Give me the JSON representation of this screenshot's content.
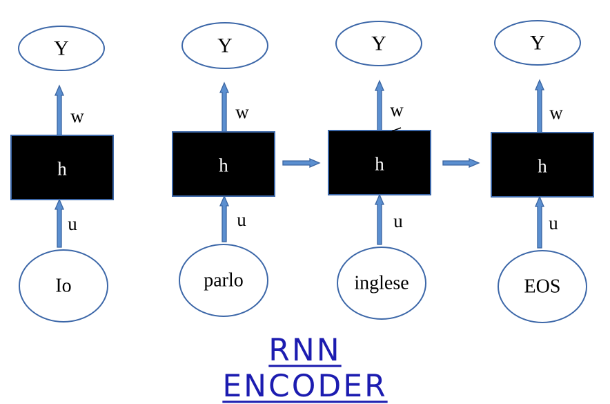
{
  "diagram": {
    "caption": "RNN ENCODER",
    "columns": [
      {
        "output": "Y",
        "weight_out": "w",
        "hidden": "h",
        "weight_in": "u",
        "input": "Io"
      },
      {
        "output": "Y",
        "weight_out": "w",
        "hidden": "h",
        "weight_in": "u",
        "input": "parlo"
      },
      {
        "output": "Y",
        "weight_out": "w",
        "hidden": "h",
        "weight_in": "u",
        "input": "inglese"
      },
      {
        "output": "Y",
        "weight_out": "w",
        "hidden": "h",
        "weight_in": "u",
        "input": "EOS"
      }
    ],
    "recurrent_links": [
      {
        "from": 1,
        "to": 2
      },
      {
        "from": 2,
        "to": 3
      }
    ]
  },
  "colors": {
    "node_stroke": "#3c67a8",
    "arrow_fill": "#5b8fd0",
    "arrow_stroke": "#3a64a0",
    "hidden_fill": "#000000",
    "caption": "#1c1cb0"
  },
  "icons": {
    "arrow": "block-arrow"
  }
}
